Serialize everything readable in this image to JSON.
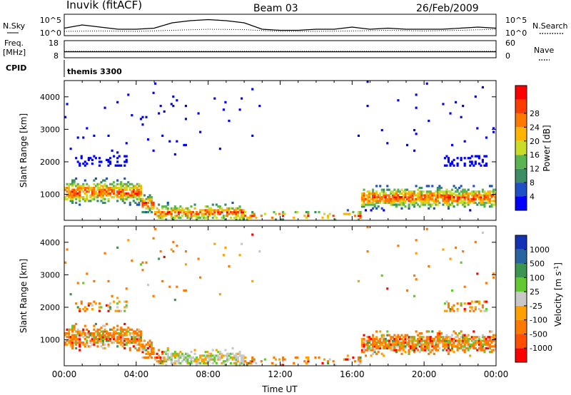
{
  "header": {
    "station": "Inuvik (fitACF)",
    "beam": "Beam 03",
    "date": "26/Feb/2009"
  },
  "colors": {
    "power_scale": [
      "#0000ff",
      "#2050c8",
      "#3c8c64",
      "#5ab450",
      "#c8dc28",
      "#ffb400",
      "#ff7800",
      "#ff3c00",
      "#ff0000"
    ],
    "velocity_scale": [
      "#ff0000",
      "#ff5000",
      "#ff7800",
      "#ffa000",
      "#c8c8c8",
      "#64c832",
      "#3c9650",
      "#2864a0",
      "#1432b4"
    ]
  },
  "chart_data": [
    {
      "type": "line",
      "panel": "noise",
      "left_label": "N.Sky",
      "right_label": "N.Search",
      "left_ticks": [
        "10^5",
        "10^0"
      ],
      "right_ticks": [
        "10^5",
        "10^0"
      ],
      "x_range": [
        0,
        24
      ],
      "series": [
        {
          "style": "solid",
          "x": [
            0,
            1,
            2,
            3,
            4,
            5,
            6,
            7,
            8,
            9,
            10,
            11,
            12,
            13,
            14,
            15,
            16,
            17,
            18,
            19,
            20,
            21,
            22,
            23,
            24
          ],
          "values": [
            0.35,
            0.5,
            0.4,
            0.3,
            0.3,
            0.35,
            0.6,
            0.7,
            0.75,
            0.7,
            0.6,
            0.3,
            0.25,
            0.25,
            0.3,
            0.3,
            0.4,
            0.3,
            0.35,
            0.3,
            0.3,
            0.3,
            0.35,
            0.4,
            0.35
          ]
        },
        {
          "style": "dotted",
          "x": [
            0,
            2,
            4,
            6,
            8,
            10,
            12,
            14,
            16,
            18,
            20,
            22,
            24
          ],
          "values": [
            0.2,
            0.22,
            0.2,
            0.25,
            0.3,
            0.28,
            0.2,
            0.2,
            0.22,
            0.25,
            0.22,
            0.25,
            0.3
          ]
        }
      ]
    },
    {
      "type": "line",
      "panel": "frequency",
      "left_label": "Freq.",
      "left_unit": "[MHz]",
      "right_label": "Nave",
      "left_ticks": [
        "18",
        "8"
      ],
      "right_ticks": [
        "60",
        "0"
      ],
      "x_range": [
        0,
        24
      ],
      "series": [
        {
          "style": "solid",
          "x": [
            0,
            24
          ],
          "values": [
            0.35,
            0.35
          ]
        },
        {
          "style": "dotted",
          "x": [
            0,
            24
          ],
          "values": [
            0.38,
            0.38
          ]
        }
      ]
    },
    {
      "type": "table",
      "panel": "cpid",
      "label": "CPID",
      "text": "themis 3300"
    },
    {
      "type": "heatmap",
      "panel": "power",
      "ylabel": "Slant Range [km]",
      "xlim": [
        0,
        24
      ],
      "ylim": [
        200,
        4500
      ],
      "y_ticks": [
        1000,
        2000,
        3000,
        4000
      ],
      "colorbar_label": "Power [dB]",
      "colorbar_ticks": [
        "4",
        "8",
        "12",
        "16",
        "20",
        "24",
        "28"
      ]
    },
    {
      "type": "heatmap",
      "panel": "velocity",
      "ylabel": "Slant Range [km]",
      "xlabel": "Time UT",
      "xlim": [
        0,
        24
      ],
      "ylim": [
        200,
        4500
      ],
      "x_ticks": [
        "00:00",
        "04:00",
        "08:00",
        "12:00",
        "16:00",
        "20:00",
        "00:00"
      ],
      "y_ticks": [
        1000,
        2000,
        3000,
        4000
      ],
      "colorbar_label": "Velocity [m s^-1]",
      "colorbar_ticks": [
        "1000",
        "500",
        "100",
        "25",
        "-25",
        "-100",
        "-500",
        "-1000"
      ]
    }
  ]
}
